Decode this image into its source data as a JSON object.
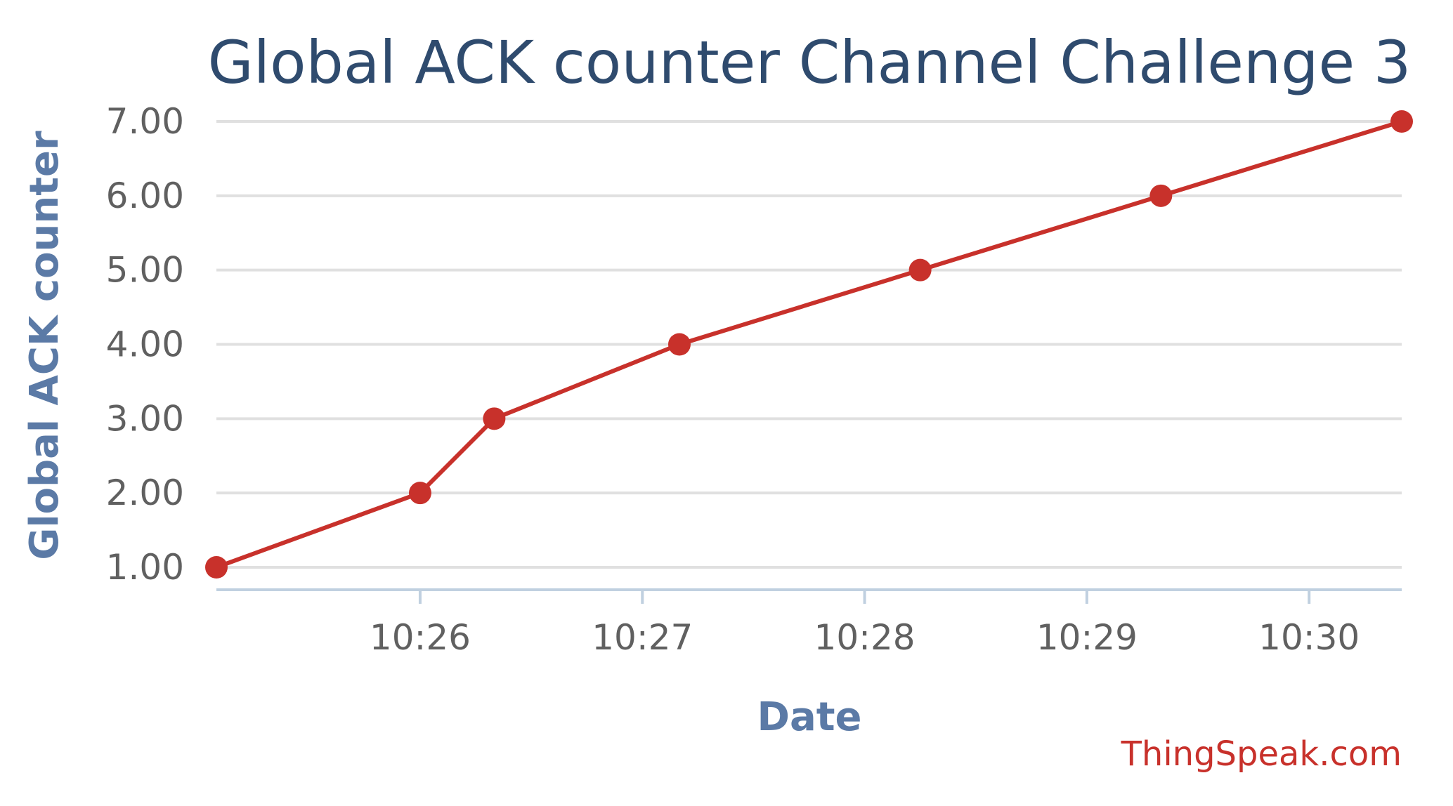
{
  "chart_data": {
    "type": "line",
    "title": "Global ACK counter Channel Challenge 3",
    "xlabel": "Date",
    "ylabel": "Global ACK counter",
    "x_ticks": [
      "10:26",
      "10:27",
      "10:28",
      "10:29",
      "10:30"
    ],
    "y_ticks": [
      "1.00",
      "2.00",
      "3.00",
      "4.00",
      "5.00",
      "6.00",
      "7.00"
    ],
    "ylim": [
      1,
      7
    ],
    "xlim": [
      "10:25:05",
      "10:30:25"
    ],
    "grid": true,
    "series": [
      {
        "x": [
          "10:25:05",
          "10:26:00",
          "10:26:20",
          "10:27:10",
          "10:28:15",
          "10:29:20",
          "10:30:25"
        ],
        "y": [
          1,
          2,
          3,
          4,
          5,
          6,
          7
        ]
      }
    ]
  },
  "credit": "ThingSpeak.com",
  "colors": {
    "series": "#c8312b",
    "title": "#2f4b6e",
    "axis_title": "#5b7aa6",
    "credit": "#c8312b",
    "grid": "#e0e0e0",
    "x_axis": "#c0d0e0"
  }
}
